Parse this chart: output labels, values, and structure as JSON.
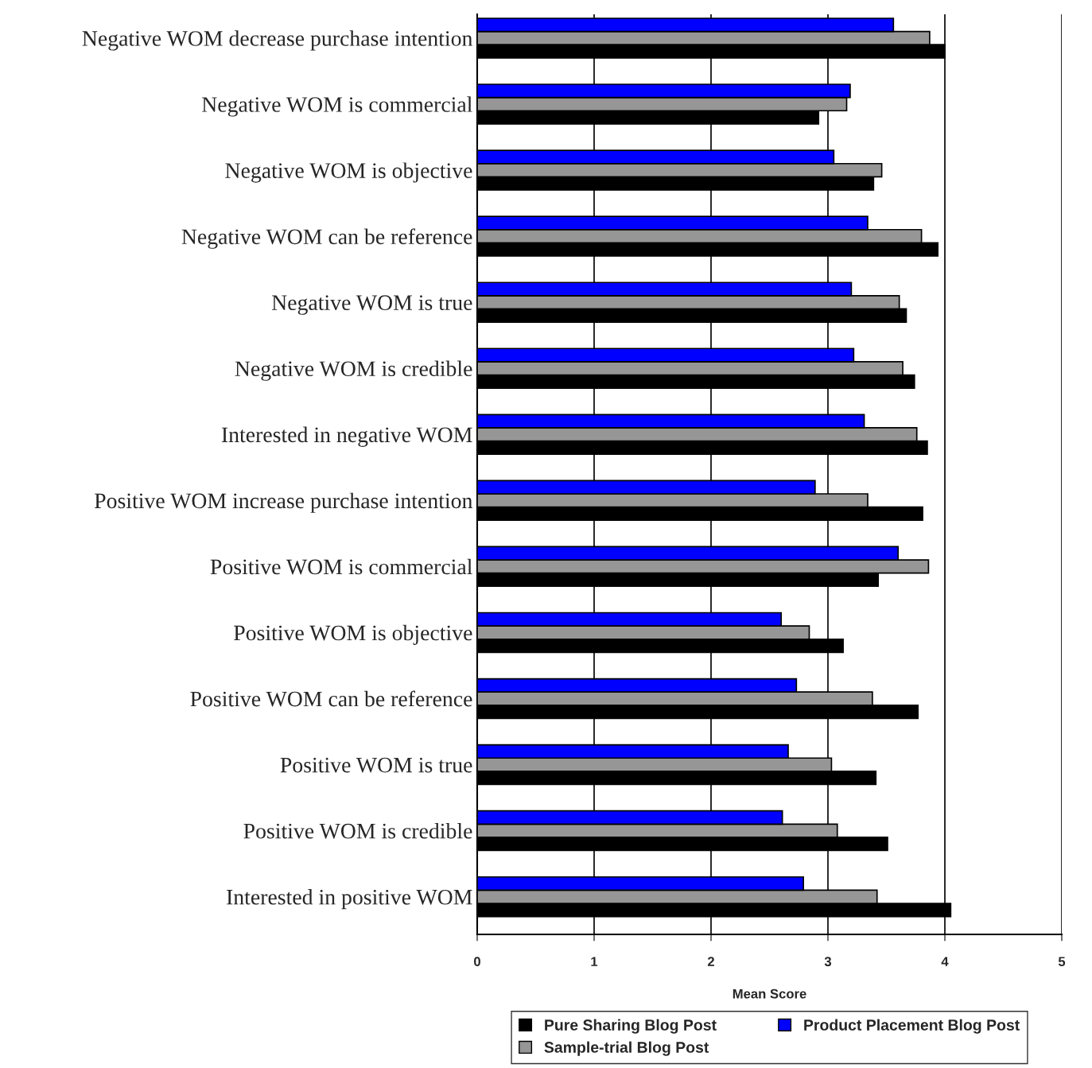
{
  "chart_data": {
    "type": "bar",
    "orientation": "horizontal",
    "xlabel": "Mean Score",
    "categories": [
      "Negative WOM decrease purchase intention",
      "Negative WOM is commercial",
      "Negative WOM is objective",
      "Negative WOM can be reference",
      "Negative WOM is true",
      "Negative WOM is credible",
      "Interested in negative WOM",
      "Positive WOM increase purchase intention",
      "Positive WOM is commercial",
      "Positive WOM is objective",
      "Positive WOM can be reference",
      "Positive WOM is true",
      "Positive WOM is credible",
      "Interested in positive WOM"
    ],
    "series": [
      {
        "name": "Pure Sharing Blog Post",
        "color": "#000000",
        "values": [
          4.0,
          2.92,
          3.39,
          3.94,
          3.67,
          3.74,
          3.85,
          3.81,
          3.43,
          3.13,
          3.77,
          3.41,
          3.51,
          4.05
        ]
      },
      {
        "name": "Sample-trial Blog Post",
        "color": "#969696",
        "values": [
          3.87,
          3.16,
          3.46,
          3.8,
          3.61,
          3.64,
          3.76,
          3.34,
          3.86,
          2.84,
          3.38,
          3.03,
          3.08,
          3.42
        ]
      },
      {
        "name": "Product Placement Blog Post",
        "color": "#0000ff",
        "values": [
          3.56,
          3.19,
          3.05,
          3.34,
          3.2,
          3.22,
          3.31,
          2.89,
          3.6,
          2.6,
          2.73,
          2.66,
          2.61,
          2.79
        ]
      }
    ],
    "xlim": [
      0,
      5
    ],
    "xticks": [
      0,
      1,
      2,
      3,
      4,
      5
    ],
    "grid": "x",
    "legend": "bottom"
  }
}
